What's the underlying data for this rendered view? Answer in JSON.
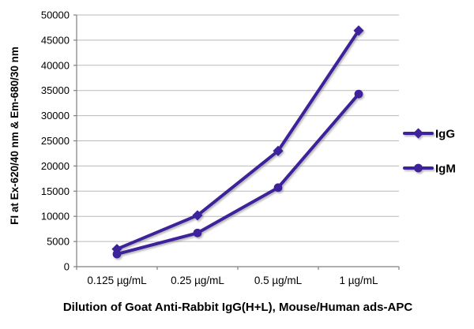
{
  "chart_data": {
    "type": "line",
    "title": "",
    "xlabel": "Dilution of Goat Anti-Rabbit IgG(H+L), Mouse/Human ads-APC",
    "ylabel": "FI at Ex-620/40 nm & Em-680/30 nm",
    "categories": [
      "0.125 µg/mL",
      "0.25 µg/mL",
      "0.5 µg/mL",
      "1 µg/mL"
    ],
    "series": [
      {
        "name": "IgG",
        "marker": "diamond",
        "values": [
          3500,
          10200,
          23000,
          46900
        ]
      },
      {
        "name": "IgM",
        "marker": "circle",
        "values": [
          2500,
          6700,
          15700,
          34300
        ]
      }
    ],
    "ylim": [
      0,
      50000
    ],
    "ytick_step": 5000,
    "ytick_labels": [
      "0",
      "5000",
      "10000",
      "15000",
      "20000",
      "25000",
      "30000",
      "35000",
      "40000",
      "45000",
      "50000"
    ],
    "grid": true,
    "legend_position": "right",
    "legend": [
      {
        "label": "IgG",
        "marker": "diamond"
      },
      {
        "label": "IgM",
        "marker": "circle"
      }
    ],
    "colors": {
      "series": "#3E239C",
      "gridline": "#b9b9b9",
      "axis": "#7f7f7f",
      "text": "#000000",
      "background": "#ffffff"
    }
  }
}
